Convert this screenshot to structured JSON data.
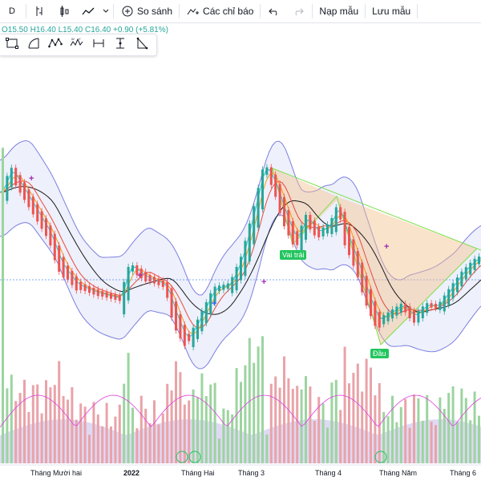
{
  "toolbar": {
    "compare_label": "So sánh",
    "indicators_label": "Các chỉ báo",
    "load_template_label": "Nạp mẫu",
    "save_template_label": "Lưu mẫu"
  },
  "ohlc": {
    "open": "O15.50",
    "high": "H16.40",
    "low": "L15.40",
    "close": "C16.40",
    "change": "+0.90 (+5.81%)"
  },
  "pattern_labels": {
    "left_shoulder": "Vai trái",
    "head": "Đầu"
  },
  "x_axis": [
    "Tháng Mười hai",
    "2022",
    "Tháng Hai",
    "Tháng 3",
    "Tháng 4",
    "Tháng Năm",
    "Tháng 6"
  ],
  "colors": {
    "up": "#26a69a",
    "down": "#ef5350",
    "bb": "#7b7fe0",
    "bb_fill": "#eef0fb",
    "pattern_line": "#7ee04f",
    "pattern_fill": "#f4c08c",
    "ma_black": "#1a1a1a",
    "ma_red": "#e74c3c",
    "ma_orange": "#f39c12",
    "ma_teal": "#2ec4c4",
    "vol_up": "#9cd4a0",
    "vol_down": "#e9a3a8",
    "vol_ma": "#e040e0",
    "vol_area": "#c9c0ec"
  },
  "icons": [
    "timeframe-icon",
    "bar-type-icon",
    "line-chart-icon",
    "dropdown-icon",
    "compare-icon",
    "indicators-icon",
    "undo-icon",
    "redo-icon"
  ],
  "draw_tools": [
    "rectangle-tool-icon",
    "curve-tool-icon",
    "xabcd-pattern-icon",
    "head-shoulders-pattern-icon",
    "bars-pattern-icon",
    "fib-tool-icon",
    "triangle-tool-icon"
  ]
}
